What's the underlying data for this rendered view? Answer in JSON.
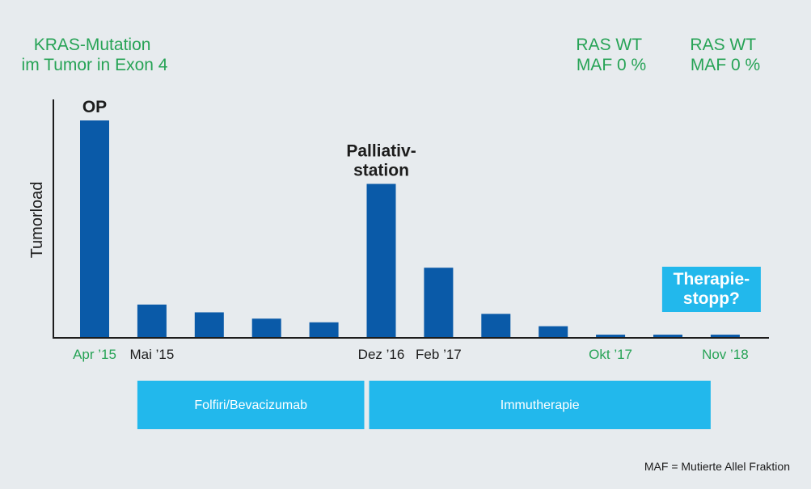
{
  "colors": {
    "bar": "#0a5aa8",
    "phase": "#22b8ec",
    "green_text": "#27a356",
    "dark_text": "#1c1c1c",
    "background": "#e7ebee"
  },
  "notes": {
    "top_left": [
      "KRAS-Mutation",
      "im Tumor in Exon 4"
    ],
    "ras_1": [
      "RAS WT",
      "MAF 0 %"
    ],
    "ras_2": [
      "RAS WT",
      "MAF 0 %"
    ]
  },
  "footnote": "MAF = Mutierte Allel Fraktion",
  "chart_data": {
    "type": "bar",
    "ylabel": "Tumorload",
    "categories": [
      "Apr ’15",
      "Mai ’15",
      "",
      "",
      "",
      "Dez ’16",
      "Feb ’17",
      "",
      "",
      "Okt ’17",
      "",
      "Nov ’18"
    ],
    "tick_colors": [
      "green",
      "dark",
      "dark",
      "dark",
      "dark",
      "dark",
      "dark",
      "dark",
      "dark",
      "green",
      "dark",
      "green"
    ],
    "values": [
      100,
      15,
      11.4,
      8.5,
      6.8,
      70.7,
      32,
      10.7,
      5,
      1.1,
      1.1,
      1.1
    ],
    "ylim": [
      0,
      100
    ],
    "grid": false,
    "annotations": [
      {
        "index": 0,
        "lines": [
          "OP"
        ]
      },
      {
        "index": 5,
        "lines": [
          "Palliativ-",
          "station"
        ]
      }
    ],
    "callout": {
      "index": 11,
      "lines": [
        "Therapie-",
        "stopp?"
      ]
    },
    "phases": [
      {
        "label": "Folfiri/Bevacizumab",
        "from": 1,
        "to": 5
      },
      {
        "label": "Immutherapie",
        "from": 5,
        "to": 11
      }
    ]
  }
}
